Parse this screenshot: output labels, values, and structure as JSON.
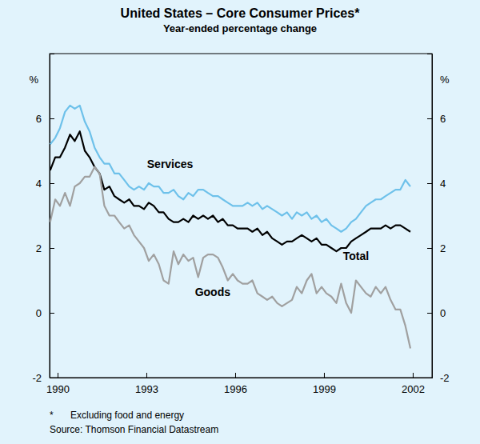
{
  "chart_data": {
    "type": "line",
    "title": "United States – Core Consumer Prices*",
    "subtitle": "Year-ended percentage change",
    "ylabel": "%",
    "footnote_marker": "*",
    "footnote": "Excluding food and energy",
    "source": "Source: Thomson Financial Datastream",
    "xlim": [
      1989.73,
      2002.65
    ],
    "xticks": [
      1990,
      1993,
      1996,
      1999,
      2002
    ],
    "ylim": [
      -2,
      8
    ],
    "yticks": [
      -2,
      0,
      2,
      4,
      6
    ],
    "grid": false,
    "x": [
      1989.75,
      1989.92,
      1990.08,
      1990.25,
      1990.42,
      1990.58,
      1990.75,
      1990.92,
      1991.08,
      1991.25,
      1991.42,
      1991.58,
      1991.75,
      1991.92,
      1992.08,
      1992.25,
      1992.42,
      1992.58,
      1992.75,
      1992.92,
      1993.08,
      1993.25,
      1993.42,
      1993.58,
      1993.75,
      1993.92,
      1994.08,
      1994.25,
      1994.42,
      1994.58,
      1994.75,
      1994.92,
      1995.08,
      1995.25,
      1995.42,
      1995.58,
      1995.75,
      1995.92,
      1996.08,
      1996.25,
      1996.42,
      1996.58,
      1996.75,
      1996.92,
      1997.08,
      1997.25,
      1997.42,
      1997.58,
      1997.75,
      1997.92,
      1998.08,
      1998.25,
      1998.42,
      1998.58,
      1998.75,
      1998.92,
      1999.08,
      1999.25,
      1999.42,
      1999.58,
      1999.75,
      1999.92,
      2000.08,
      2000.25,
      2000.42,
      2000.58,
      2000.75,
      2000.92,
      2001.08,
      2001.25,
      2001.42,
      2001.58,
      2001.75,
      2001.92
    ],
    "series": [
      {
        "name": "Services",
        "color": "#6ec1ea",
        "values": [
          5.2,
          5.4,
          5.7,
          6.2,
          6.4,
          6.3,
          6.4,
          5.9,
          5.6,
          5.1,
          4.8,
          4.6,
          4.6,
          4.3,
          4.3,
          4.1,
          3.9,
          3.8,
          3.9,
          3.8,
          4.0,
          3.9,
          3.9,
          3.7,
          3.7,
          3.8,
          3.6,
          3.5,
          3.7,
          3.6,
          3.8,
          3.8,
          3.7,
          3.6,
          3.6,
          3.5,
          3.4,
          3.3,
          3.3,
          3.3,
          3.4,
          3.3,
          3.4,
          3.2,
          3.3,
          3.2,
          3.1,
          3.0,
          3.1,
          2.9,
          3.1,
          3.0,
          3.1,
          2.9,
          3.0,
          2.8,
          2.9,
          2.7,
          2.6,
          2.5,
          2.6,
          2.8,
          2.9,
          3.1,
          3.3,
          3.4,
          3.5,
          3.5,
          3.6,
          3.7,
          3.8,
          3.8,
          4.1,
          3.9
        ]
      },
      {
        "name": "Total",
        "color": "#000000",
        "values": [
          4.4,
          4.8,
          4.8,
          5.1,
          5.5,
          5.3,
          5.6,
          5.0,
          4.8,
          4.5,
          4.3,
          3.8,
          3.9,
          3.6,
          3.5,
          3.4,
          3.5,
          3.3,
          3.3,
          3.2,
          3.4,
          3.3,
          3.1,
          3.1,
          2.9,
          2.8,
          2.8,
          2.9,
          2.8,
          3.0,
          2.9,
          3.0,
          2.9,
          3.0,
          2.8,
          2.9,
          2.7,
          2.7,
          2.6,
          2.6,
          2.6,
          2.5,
          2.6,
          2.4,
          2.5,
          2.3,
          2.2,
          2.1,
          2.2,
          2.2,
          2.3,
          2.4,
          2.3,
          2.2,
          2.3,
          2.1,
          2.1,
          2.0,
          1.9,
          2.0,
          2.0,
          2.2,
          2.3,
          2.4,
          2.5,
          2.6,
          2.6,
          2.6,
          2.7,
          2.6,
          2.7,
          2.7,
          2.6,
          2.5
        ]
      },
      {
        "name": "Goods",
        "color": "#a0a0a0",
        "values": [
          2.8,
          3.5,
          3.3,
          3.7,
          3.3,
          3.9,
          4.0,
          4.2,
          4.2,
          4.5,
          4.3,
          3.3,
          3.0,
          3.0,
          2.8,
          2.6,
          2.7,
          2.4,
          2.2,
          2.0,
          1.6,
          1.8,
          1.5,
          1.0,
          0.9,
          1.9,
          1.5,
          1.8,
          1.6,
          1.7,
          1.1,
          1.7,
          1.8,
          1.8,
          1.7,
          1.4,
          1.0,
          1.2,
          1.0,
          0.9,
          0.9,
          1.0,
          0.6,
          0.5,
          0.4,
          0.5,
          0.3,
          0.2,
          0.3,
          0.4,
          0.8,
          0.6,
          1.0,
          1.2,
          0.6,
          0.8,
          0.6,
          0.5,
          0.3,
          0.9,
          0.3,
          0.0,
          1.0,
          0.8,
          0.6,
          0.5,
          0.8,
          0.6,
          0.8,
          0.4,
          0.1,
          0.1,
          -0.4,
          -1.1
        ]
      }
    ],
    "annotations": [
      {
        "text": "Services",
        "x": 1993.8,
        "y": 4.47
      },
      {
        "text": "Total",
        "x": 2000.08,
        "y": 1.62
      },
      {
        "text": "Goods",
        "x": 1995.24,
        "y": 0.52
      }
    ]
  }
}
